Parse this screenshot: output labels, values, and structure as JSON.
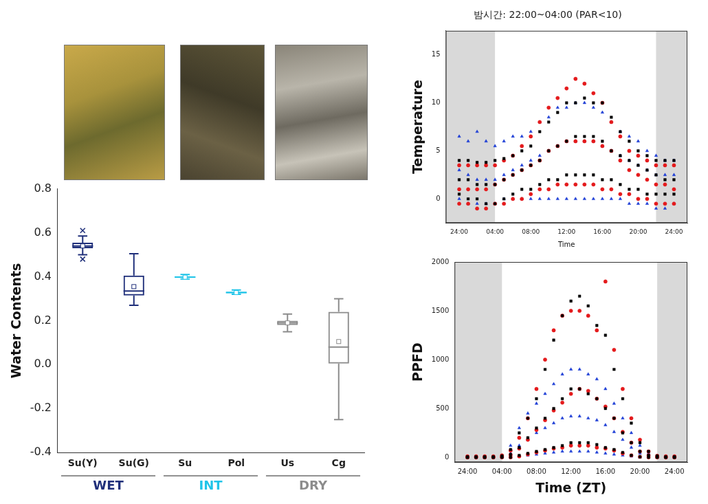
{
  "chart_data": [
    {
      "type": "box",
      "y_label": "Water Contents",
      "categories": [
        "Su(Y)",
        "Su(G)",
        "Su",
        "Pol",
        "Us",
        "Cg"
      ],
      "colors": [
        "#1f2f7a",
        "#1f2f7a",
        "#1fc4e8",
        "#1fc4e8",
        "#8c8c8c",
        "#8c8c8c"
      ],
      "boxes": [
        {
          "whisker_low": 0.5,
          "q1": 0.53,
          "median": 0.54,
          "q3": 0.555,
          "whisker_high": 0.585,
          "mean": 0.54,
          "outliers": [
            0.61,
            0.48
          ]
        },
        {
          "whisker_low": 0.27,
          "q1": 0.315,
          "median": 0.335,
          "q3": 0.405,
          "whisker_high": 0.505,
          "mean": 0.355,
          "outliers": []
        },
        {
          "whisker_low": 0.39,
          "q1": 0.395,
          "median": 0.398,
          "q3": 0.402,
          "whisker_high": 0.41,
          "mean": 0.398,
          "outliers": []
        },
        {
          "whisker_low": 0.32,
          "q1": 0.325,
          "median": 0.328,
          "q3": 0.332,
          "whisker_high": 0.34,
          "mean": 0.328,
          "outliers": []
        },
        {
          "whisker_low": 0.15,
          "q1": 0.18,
          "median": 0.19,
          "q3": 0.2,
          "whisker_high": 0.23,
          "mean": 0.19,
          "outliers": []
        },
        {
          "whisker_low": -0.25,
          "q1": 0.005,
          "median": 0.08,
          "q3": 0.24,
          "whisker_high": 0.3,
          "mean": 0.105,
          "outliers": []
        }
      ],
      "groups": [
        {
          "label": "WET",
          "color": "#1f2f7a",
          "categories": [
            "Su(Y)",
            "Su(G)"
          ]
        },
        {
          "label": "INT",
          "color": "#1fc4e8",
          "categories": [
            "Su",
            "Pol"
          ]
        },
        {
          "label": "DRY",
          "color": "#8c8c8c",
          "categories": [
            "Us",
            "Cg"
          ]
        }
      ],
      "ylim": [
        -0.4,
        0.8
      ],
      "yticks": [
        -0.4,
        -0.2,
        {
          "value": 0,
          "label": "0.0"
        },
        0.2,
        0.4,
        0.6,
        0.8
      ],
      "grid": false
    },
    {
      "type": "scatter",
      "title": "밤시간: 22:00~04:00 (PAR<10)",
      "x_label": "Time",
      "y_label": "Temperature",
      "shaded": [
        {
          "from": -2,
          "to": 4
        },
        {
          "from": 22,
          "to": 26
        }
      ],
      "x": [
        0,
        1,
        2,
        3,
        4,
        5,
        6,
        7,
        8,
        9,
        10,
        11,
        12,
        13,
        14,
        15,
        16,
        17,
        18,
        19,
        20,
        21,
        22,
        23,
        24
      ],
      "series": [
        {
          "color": "#000000",
          "marker": "square",
          "values": [
            [
              0.5,
              2,
              4
            ],
            [
              0,
              2,
              4
            ],
            [
              0,
              1.5,
              3.8
            ],
            [
              -0.5,
              1.5,
              3.8
            ],
            [
              -0.5,
              1.5,
              4
            ],
            [
              0,
              2,
              4.2
            ],
            [
              0.5,
              2.5,
              4.5
            ],
            [
              1,
              3,
              5
            ],
            [
              1,
              3.5,
              5.5
            ],
            [
              1.5,
              4,
              7
            ],
            [
              2,
              5,
              8
            ],
            [
              2,
              5.5,
              9
            ],
            [
              2.5,
              6,
              10
            ],
            [
              2.5,
              6.5,
              10
            ],
            [
              2.5,
              6.5,
              10.5
            ],
            [
              2.5,
              6.5,
              10
            ],
            [
              2,
              6,
              10
            ],
            [
              2,
              5,
              8.5
            ],
            [
              1.5,
              4.5,
              7
            ],
            [
              1,
              4,
              6
            ],
            [
              1,
              3.5,
              5
            ],
            [
              0.5,
              3,
              4.5
            ],
            [
              0.5,
              2.5,
              4
            ],
            [
              0.5,
              2,
              4
            ],
            [
              0.5,
              2,
              4
            ]
          ]
        },
        {
          "color": "#e41a1c",
          "marker": "circle",
          "values": [
            [
              -0.5,
              1,
              3.5
            ],
            [
              -0.5,
              1,
              3.5
            ],
            [
              -1,
              1,
              3.5
            ],
            [
              -1,
              1,
              3.5
            ],
            [
              -0.5,
              1.5,
              3.5
            ],
            [
              -0.5,
              2,
              4
            ],
            [
              0,
              2.5,
              4.5
            ],
            [
              0,
              3,
              5.5
            ],
            [
              0.5,
              3.5,
              6.5
            ],
            [
              1,
              4,
              8
            ],
            [
              1,
              5,
              9.5
            ],
            [
              1.5,
              5.5,
              10.5
            ],
            [
              1.5,
              6,
              11.5
            ],
            [
              1.5,
              6,
              12.5
            ],
            [
              1.5,
              6,
              12
            ],
            [
              1.5,
              6,
              11
            ],
            [
              1,
              5.5,
              10
            ],
            [
              1,
              5,
              8
            ],
            [
              0.5,
              4,
              6.5
            ],
            [
              0.5,
              3,
              5
            ],
            [
              0,
              2.5,
              4.5
            ],
            [
              0,
              2,
              4
            ],
            [
              -0.5,
              1.5,
              3.5
            ],
            [
              -0.5,
              1.5,
              3.5
            ],
            [
              -0.5,
              1,
              3.5
            ]
          ]
        },
        {
          "color": "#1f3fd6",
          "marker": "triangle",
          "values": [
            [
              0,
              3,
              6.5
            ],
            [
              -0.5,
              2.5,
              6
            ],
            [
              -0.5,
              2,
              7
            ],
            [
              -0.5,
              2,
              6
            ],
            [
              -0.5,
              2,
              5.5
            ],
            [
              0,
              2.5,
              6
            ],
            [
              0,
              3,
              6.5
            ],
            [
              0,
              3.5,
              6.5
            ],
            [
              0,
              4,
              7
            ],
            [
              0,
              4.5,
              8
            ],
            [
              0,
              5,
              8.5
            ],
            [
              0,
              5.5,
              9.5
            ],
            [
              0,
              6,
              9.5
            ],
            [
              0,
              6,
              10
            ],
            [
              0,
              6,
              10
            ],
            [
              0,
              6,
              9.5
            ],
            [
              0,
              5.5,
              9
            ],
            [
              0,
              5,
              8
            ],
            [
              0,
              4.5,
              7
            ],
            [
              -0.5,
              4,
              6.5
            ],
            [
              -0.5,
              3.5,
              6
            ],
            [
              -0.5,
              3,
              5
            ],
            [
              -1,
              2.5,
              4.5
            ],
            [
              -1,
              2.5,
              4
            ],
            [
              -0.5,
              2.5,
              4
            ]
          ]
        }
      ],
      "xlim": [
        -1.5,
        25.5
      ],
      "xticks": [
        {
          "value": 0,
          "label": "24:00"
        },
        {
          "value": 4,
          "label": "04:00"
        },
        {
          "value": 8,
          "label": "08:00"
        },
        {
          "value": 12,
          "label": "12:00"
        },
        {
          "value": 16,
          "label": "16:00"
        },
        {
          "value": 20,
          "label": "20:00"
        },
        {
          "value": 24,
          "label": "24:00"
        }
      ],
      "ylim": [
        -2.5,
        17.5
      ],
      "yticks": [
        0,
        5,
        10,
        15
      ],
      "grid": false
    },
    {
      "type": "scatter",
      "x_label": "Time (ZT)",
      "y_label": "PPFD",
      "shaded": [
        {
          "from": -2,
          "to": 4
        },
        {
          "from": 22,
          "to": 26
        }
      ],
      "x": [
        0,
        1,
        2,
        3,
        4,
        5,
        6,
        7,
        8,
        9,
        10,
        11,
        12,
        13,
        14,
        15,
        16,
        17,
        18,
        19,
        20,
        21,
        22,
        23,
        24
      ],
      "series": [
        {
          "color": "#000000",
          "marker": "square",
          "values": [
            [
              0,
              0,
              5
            ],
            [
              0,
              0,
              5
            ],
            [
              0,
              0,
              5
            ],
            [
              0,
              0,
              5
            ],
            [
              0,
              5,
              15
            ],
            [
              0,
              30,
              80
            ],
            [
              20,
              100,
              250
            ],
            [
              40,
              200,
              400
            ],
            [
              60,
              300,
              600
            ],
            [
              80,
              400,
              900
            ],
            [
              100,
              500,
              1200
            ],
            [
              120,
              600,
              1450
            ],
            [
              150,
              700,
              1600
            ],
            [
              150,
              700,
              1650
            ],
            [
              150,
              650,
              1550
            ],
            [
              130,
              600,
              1350
            ],
            [
              100,
              500,
              1250
            ],
            [
              80,
              400,
              900
            ],
            [
              50,
              250,
              600
            ],
            [
              20,
              150,
              350
            ],
            [
              5,
              60,
              150
            ],
            [
              0,
              20,
              60
            ],
            [
              0,
              5,
              15
            ],
            [
              0,
              0,
              5
            ],
            [
              0,
              0,
              5
            ]
          ]
        },
        {
          "color": "#e41a1c",
          "marker": "circle",
          "values": [
            [
              0,
              0,
              10
            ],
            [
              0,
              0,
              10
            ],
            [
              0,
              0,
              10
            ],
            [
              0,
              0,
              10
            ],
            [
              0,
              5,
              20
            ],
            [
              0,
              25,
              70
            ],
            [
              10,
              90,
              200
            ],
            [
              30,
              180,
              400
            ],
            [
              50,
              280,
              700
            ],
            [
              70,
              380,
              1000
            ],
            [
              90,
              480,
              1300
            ],
            [
              100,
              560,
              1450
            ],
            [
              120,
              650,
              1500
            ],
            [
              120,
              700,
              1500
            ],
            [
              120,
              680,
              1450
            ],
            [
              100,
              600,
              1300
            ],
            [
              90,
              520,
              1800
            ],
            [
              70,
              400,
              1100
            ],
            [
              40,
              260,
              700
            ],
            [
              20,
              150,
              400
            ],
            [
              5,
              60,
              180
            ],
            [
              0,
              20,
              60
            ],
            [
              0,
              5,
              15
            ],
            [
              0,
              0,
              10
            ],
            [
              0,
              0,
              10
            ]
          ]
        },
        {
          "color": "#1f3fd6",
          "marker": "triangle",
          "values": [
            [
              0,
              0,
              5
            ],
            [
              0,
              0,
              5
            ],
            [
              0,
              0,
              5
            ],
            [
              0,
              0,
              5
            ],
            [
              0,
              0,
              10
            ],
            [
              0,
              40,
              120
            ],
            [
              10,
              120,
              300
            ],
            [
              20,
              180,
              450
            ],
            [
              30,
              250,
              550
            ],
            [
              40,
              300,
              650
            ],
            [
              50,
              350,
              750
            ],
            [
              60,
              400,
              850
            ],
            [
              60,
              420,
              900
            ],
            [
              60,
              420,
              900
            ],
            [
              60,
              400,
              850
            ],
            [
              50,
              380,
              800
            ],
            [
              40,
              330,
              700
            ],
            [
              30,
              260,
              550
            ],
            [
              20,
              180,
              400
            ],
            [
              10,
              100,
              250
            ],
            [
              0,
              40,
              120
            ],
            [
              0,
              10,
              40
            ],
            [
              0,
              0,
              10
            ],
            [
              0,
              0,
              5
            ],
            [
              0,
              0,
              5
            ]
          ]
        }
      ],
      "xlim": [
        -1.5,
        25.5
      ],
      "xticks": [
        {
          "value": 0,
          "label": "24:00"
        },
        {
          "value": 4,
          "label": "04:00"
        },
        {
          "value": 8,
          "label": "08:00"
        },
        {
          "value": 12,
          "label": "12:00"
        },
        {
          "value": 16,
          "label": "16:00"
        },
        {
          "value": 20,
          "label": "20:00"
        },
        {
          "value": 24,
          "label": "24:00"
        }
      ],
      "ylim": [
        -50,
        2000
      ],
      "yticks": [
        0,
        500,
        1000,
        1500,
        2000
      ],
      "grid": false
    }
  ]
}
